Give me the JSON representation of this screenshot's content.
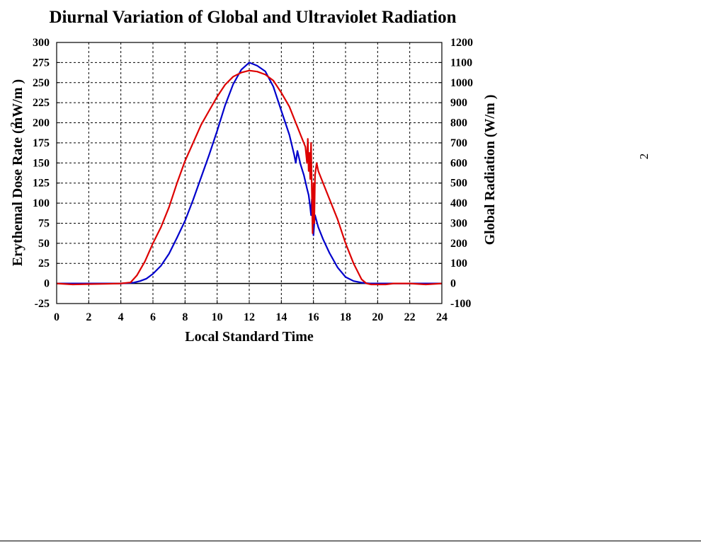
{
  "chart_data": {
    "type": "line",
    "title": "Diurnal Variation of Global and Ultraviolet Radiation",
    "xlabel": "Local Standard Time",
    "ylabel_left": "Erythemal Dose Rate (mW/m )",
    "ylabel_left_superscript": "2",
    "ylabel_right": "Global Radiation (W/m )",
    "ylabel_right_superscript": "2",
    "xlim": [
      0,
      24
    ],
    "ylim_left": [
      -25,
      300
    ],
    "ylim_right": [
      -100,
      1200
    ],
    "x_ticks": [
      "0",
      "2",
      "4",
      "6",
      "8",
      "10",
      "12",
      "14",
      "16",
      "18",
      "20",
      "22",
      "24"
    ],
    "y_left_ticks": [
      "-25",
      "0",
      "25",
      "50",
      "75",
      "100",
      "125",
      "150",
      "175",
      "200",
      "225",
      "250",
      "275",
      "300"
    ],
    "y_right_ticks": [
      "-100",
      "0",
      "100",
      "200",
      "300",
      "400",
      "500",
      "600",
      "700",
      "800",
      "900",
      "1000",
      "1100",
      "1200"
    ],
    "grid": true,
    "series": [
      {
        "axis": "left",
        "color": "#0000cc",
        "x": [
          0,
          4,
          4.8,
          5.2,
          5.6,
          6,
          6.5,
          7,
          7.5,
          8,
          8.5,
          9,
          9.5,
          10,
          10.5,
          11,
          11.5,
          12,
          12.5,
          13,
          13.5,
          14,
          14.5,
          14.8,
          14.9,
          15,
          15.2,
          15.4,
          15.6,
          15.7,
          15.8,
          15.85,
          15.9,
          15.95,
          16,
          16.05,
          16.1,
          16.3,
          16.6,
          17,
          17.5,
          18,
          18.5,
          19,
          19.5,
          20,
          24
        ],
        "y": [
          0,
          0,
          1,
          3,
          6,
          12,
          22,
          37,
          57,
          78,
          104,
          132,
          160,
          190,
          222,
          248,
          266,
          275,
          271,
          264,
          245,
          215,
          185,
          160,
          150,
          165,
          148,
          135,
          118,
          110,
          95,
          85,
          105,
          78,
          60,
          75,
          85,
          70,
          55,
          38,
          20,
          8,
          3,
          1,
          0,
          0,
          0
        ]
      },
      {
        "axis": "right",
        "color": "#dd0000",
        "x": [
          0,
          1,
          2,
          3,
          4,
          4.6,
          5,
          5.5,
          6,
          6.5,
          7,
          7.5,
          8,
          8.5,
          9,
          9.5,
          10,
          10.5,
          11,
          11.5,
          12,
          12.5,
          13,
          13.5,
          14,
          14.5,
          14.9,
          15,
          15.2,
          15.5,
          15.6,
          15.65,
          15.7,
          15.75,
          15.8,
          15.85,
          15.9,
          15.95,
          16,
          16.05,
          16.1,
          16.2,
          16.3,
          16.5,
          17,
          17.5,
          18,
          18.5,
          19,
          19.3,
          19.6,
          20,
          20.5,
          21,
          22,
          23,
          24
        ],
        "y": [
          0,
          -5,
          -3,
          -2,
          0,
          5,
          40,
          110,
          200,
          280,
          380,
          500,
          610,
          700,
          790,
          860,
          930,
          990,
          1030,
          1050,
          1060,
          1055,
          1040,
          1010,
          950,
          880,
          800,
          780,
          740,
          680,
          600,
          720,
          560,
          650,
          520,
          700,
          460,
          250,
          500,
          300,
          540,
          600,
          560,
          520,
          420,
          320,
          200,
          100,
          20,
          0,
          -5,
          -5,
          -5,
          0,
          0,
          -5,
          0
        ]
      }
    ]
  }
}
